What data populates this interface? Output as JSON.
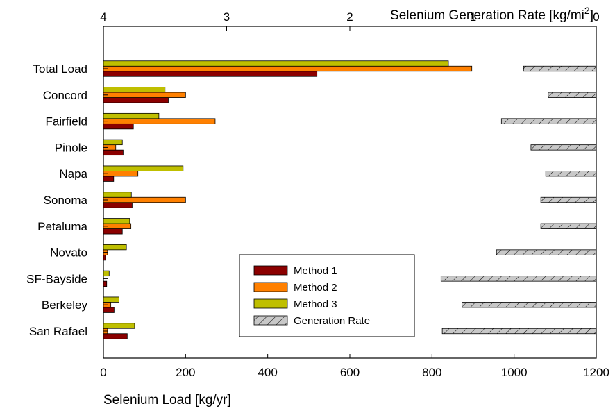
{
  "chart_data": {
    "type": "bar",
    "orientation": "horizontal",
    "categories": [
      "Total Load",
      "Concord",
      "Fairfield",
      "Pinole",
      "Napa",
      "Sonoma",
      "Petaluma",
      "Novato",
      "SF-Bayside",
      "Berkeley",
      "San Rafael"
    ],
    "series": [
      {
        "name": "Method 1",
        "axis": "bottom",
        "color": "#8b0000",
        "values": [
          520,
          158,
          73,
          48,
          25,
          70,
          46,
          5,
          8,
          26,
          58
        ]
      },
      {
        "name": "Method 2",
        "axis": "bottom",
        "color": "#ff8000",
        "values": [
          897,
          200,
          272,
          30,
          84,
          200,
          67,
          10,
          0,
          18,
          10
        ]
      },
      {
        "name": "Method 3",
        "axis": "bottom",
        "color": "#bfbf00",
        "values": [
          840,
          150,
          135,
          46,
          194,
          68,
          64,
          56,
          14,
          38,
          76
        ]
      },
      {
        "name": "Generation Rate",
        "axis": "top",
        "color": "#c8c8c8",
        "pattern": "hatch",
        "values": [
          0.59,
          0.39,
          0.77,
          0.53,
          0.41,
          0.45,
          0.45,
          0.81,
          1.26,
          1.09,
          1.25
        ]
      }
    ],
    "xlabel": "Selenium Load [kg/yr]",
    "xlim": [
      0,
      1200
    ],
    "xticks": [
      0,
      200,
      400,
      600,
      800,
      1000,
      1200
    ],
    "top_axis": {
      "label_main": "Selenium Generation Rate [kg/mi",
      "label_sup": "2",
      "label_end": "]",
      "range": [
        4,
        0
      ],
      "reversed": true,
      "ticks": [
        4,
        3,
        2,
        1,
        0
      ]
    },
    "legend": {
      "placement": "bottom-center",
      "entries": [
        "Method 1",
        "Method 2",
        "Method 3",
        "Generation Rate"
      ]
    },
    "grid": false
  }
}
